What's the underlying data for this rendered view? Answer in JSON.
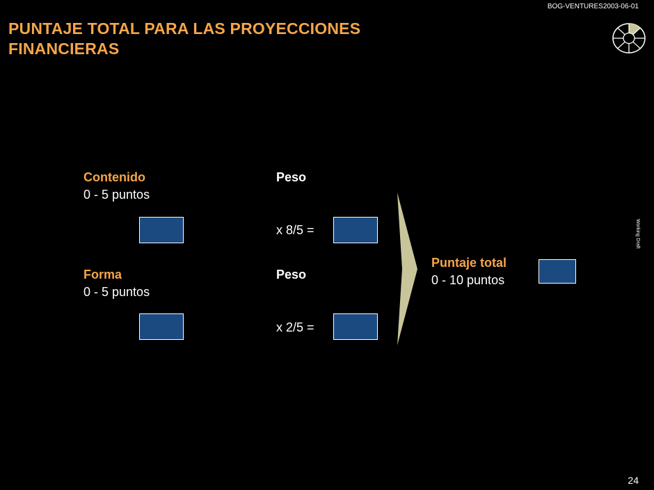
{
  "header": {
    "doc_id": "BOG-VENTURES2003-06-01",
    "title": "PUNTAJE TOTAL PARA LAS PROYECCIONES FINANCIERAS",
    "working_draft": "Working Draft"
  },
  "content": {
    "contenido_label": "Contenido",
    "contenido_range": "0 - 5 puntos",
    "peso_label_1": "Peso",
    "multiplier_1": "x 8/5 =",
    "forma_label": "Forma",
    "forma_range": "0 - 5 puntos",
    "peso_label_2": "Peso",
    "multiplier_2": "x 2/5 =",
    "total_label": "Puntaje total",
    "total_range": "0 - 10 puntos"
  },
  "footer": {
    "page_number": "24"
  },
  "colors": {
    "background": "#000000",
    "accent_orange": "#f5a54a",
    "box_blue": "#1b4a80",
    "arrow_tan": "#c9c59a"
  }
}
